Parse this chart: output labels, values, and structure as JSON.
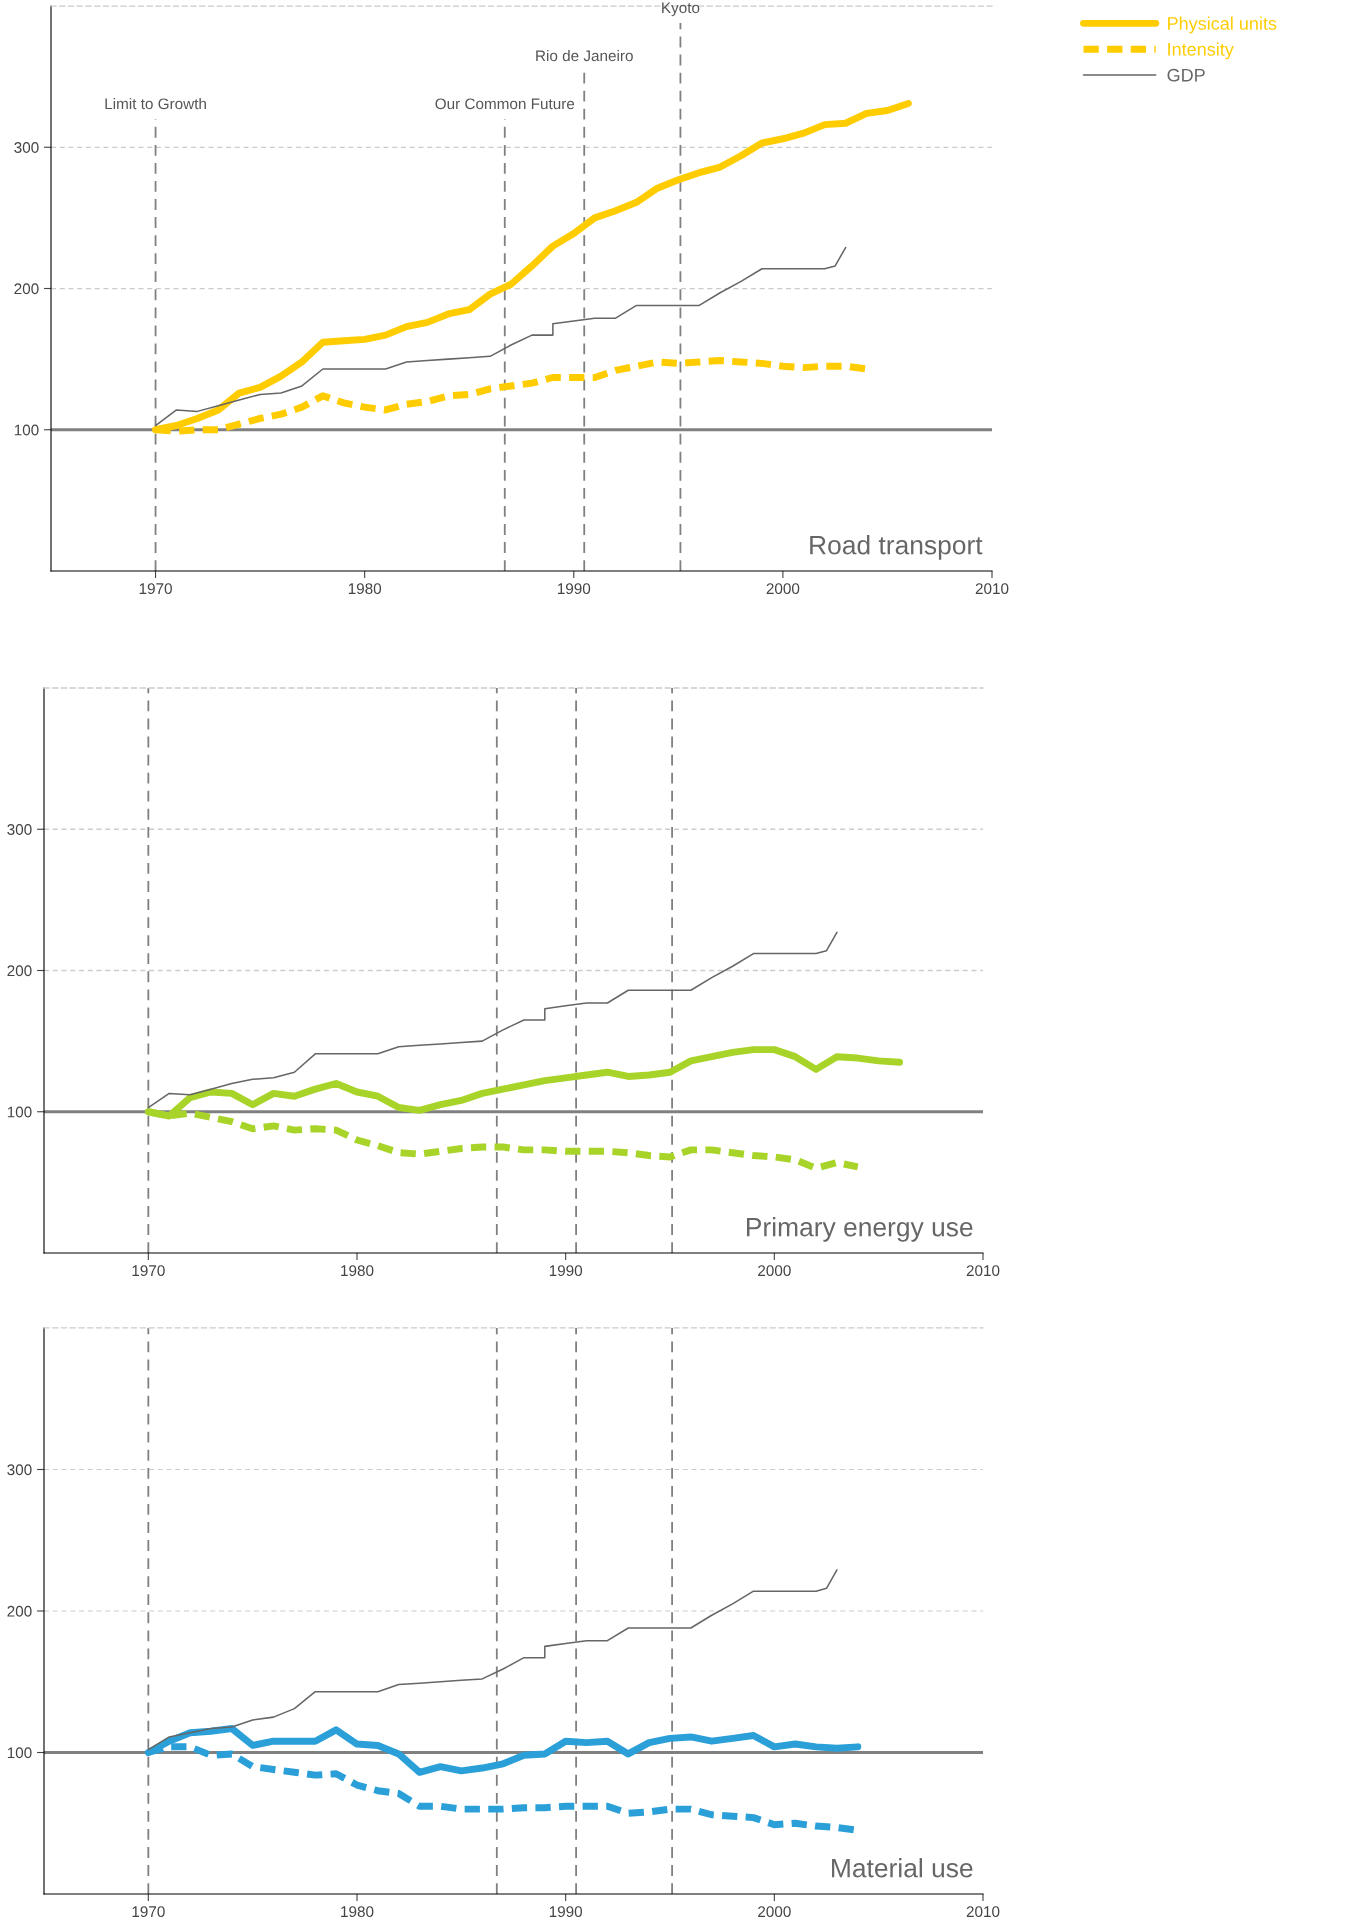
{
  "chart_data": [
    {
      "type": "line",
      "title": "Road transport",
      "xlim": [
        1965,
        2010
      ],
      "xticks": [
        1970,
        1980,
        1990,
        2000,
        2010
      ],
      "ylim": [
        0,
        400
      ],
      "yticks": [
        100,
        200,
        300
      ],
      "grid": "y",
      "legend": "top right",
      "ref_lines": [
        {
          "axis": "y",
          "value": 100,
          "color": "#808080",
          "line_style": "solid"
        },
        {
          "axis": "x",
          "value": 1970,
          "label": "Limit to Growth",
          "color": "#808080",
          "line_style": "dashed"
        },
        {
          "axis": "x",
          "value": 1986.7,
          "label": "Our Common Future",
          "color": "#808080",
          "line_style": "dashed"
        },
        {
          "axis": "x",
          "value": 1990.5,
          "label": "Rio de Janeiro",
          "color": "#808080",
          "line_style": "dashed"
        },
        {
          "axis": "x",
          "value": 1995.1,
          "label": "Kyoto",
          "color": "#808080",
          "line_style": "dashed"
        }
      ],
      "series": [
        {
          "name": "Physical units",
          "color": "#ffcc00",
          "line_style": "solid",
          "x": [
            1970,
            1971,
            1972,
            1973,
            1974,
            1975,
            1976,
            1977,
            1978,
            1979,
            1980,
            1981,
            1982,
            1983,
            1984,
            1985,
            1986,
            1987,
            1988,
            1989,
            1990,
            1991,
            1992,
            1993,
            1994,
            1995,
            1996,
            1997,
            1998,
            1999,
            2000,
            2001,
            2002,
            2003,
            2004,
            2005,
            2006
          ],
          "values": [
            100,
            103,
            108,
            114,
            126,
            130,
            138,
            148,
            162,
            163,
            164,
            167,
            173,
            176,
            182,
            185,
            196,
            203,
            216,
            230,
            239,
            250,
            255,
            261,
            271,
            277,
            282,
            286,
            294,
            303,
            306,
            310,
            316,
            317,
            324,
            326,
            331
          ]
        },
        {
          "name": "Intensity",
          "color": "#ffcc00",
          "line_style": "dashed",
          "x": [
            1970,
            1971,
            1972,
            1973,
            1974,
            1975,
            1976,
            1977,
            1978,
            1979,
            1980,
            1981,
            1982,
            1983,
            1984,
            1985,
            1986,
            1987,
            1988,
            1989,
            1990,
            1991,
            1992,
            1993,
            1994,
            1995,
            1996,
            1997,
            1998,
            1999,
            2000,
            2001,
            2002,
            2003,
            2004
          ],
          "values": [
            100,
            99,
            100,
            100,
            104,
            108,
            111,
            116,
            124,
            119,
            116,
            114,
            118,
            120,
            124,
            125,
            129,
            131,
            133,
            137,
            137,
            137,
            142,
            145,
            148,
            147,
            148,
            149,
            148,
            147,
            145,
            144,
            145,
            145,
            143
          ]
        },
        {
          "name": "GDP",
          "color": "#666666",
          "line_style": "solid",
          "x": [
            1970,
            1971,
            1972,
            1973,
            1974,
            1975,
            1976,
            1977,
            1978,
            1979,
            1980,
            1981,
            1982,
            1983,
            1984,
            1985,
            1986,
            1987,
            1988,
            1989,
            1989,
            1990,
            1991,
            1992,
            1993,
            1994,
            1995,
            1996,
            1997,
            1998,
            1999,
            2000,
            2001,
            2002,
            2002.5,
            2003
          ],
          "values": [
            103,
            114,
            113,
            117,
            121,
            125,
            126,
            131,
            143,
            143,
            143,
            143,
            148,
            149,
            150,
            151,
            152,
            160,
            167,
            167,
            175,
            177,
            179,
            179,
            188,
            188,
            188,
            188,
            197,
            205,
            214,
            214,
            214,
            214,
            216,
            229
          ]
        }
      ]
    },
    {
      "type": "line",
      "title": "Primary energy use",
      "xlim": [
        1965,
        2010
      ],
      "xticks": [
        1970,
        1980,
        1990,
        2000,
        2010
      ],
      "ylim": [
        0,
        400
      ],
      "yticks": [
        100,
        200,
        300
      ],
      "grid": "y",
      "ref_lines": [
        {
          "axis": "y",
          "value": 100,
          "color": "#808080",
          "line_style": "solid"
        },
        {
          "axis": "x",
          "value": 1970,
          "color": "#808080",
          "line_style": "dashed"
        },
        {
          "axis": "x",
          "value": 1986.7,
          "color": "#808080",
          "line_style": "dashed"
        },
        {
          "axis": "x",
          "value": 1990.5,
          "color": "#808080",
          "line_style": "dashed"
        },
        {
          "axis": "x",
          "value": 1995.1,
          "color": "#808080",
          "line_style": "dashed"
        }
      ],
      "series": [
        {
          "color": "#a8d42a",
          "line_style": "solid",
          "x": [
            1970,
            1971,
            1972,
            1973,
            1974,
            1975,
            1976,
            1977,
            1978,
            1979,
            1980,
            1981,
            1982,
            1983,
            1984,
            1985,
            1986,
            1987,
            1988,
            1989,
            1990,
            1991,
            1992,
            1993,
            1994,
            1995,
            1996,
            1997,
            1998,
            1999,
            2000,
            2001,
            2002,
            2003,
            2004,
            2005,
            2006
          ],
          "values": [
            100,
            97,
            110,
            114,
            113,
            105,
            113,
            111,
            116,
            120,
            114,
            111,
            103,
            101,
            105,
            108,
            113,
            116,
            119,
            122,
            124,
            126,
            128,
            125,
            126,
            128,
            136,
            139,
            142,
            144,
            144,
            139,
            130,
            139,
            138,
            136,
            135
          ]
        },
        {
          "color": "#a8d42a",
          "line_style": "dashed",
          "x": [
            1970,
            1971,
            1972,
            1973,
            1974,
            1975,
            1976,
            1977,
            1978,
            1979,
            1980,
            1981,
            1982,
            1983,
            1984,
            1985,
            1986,
            1987,
            1988,
            1989,
            1990,
            1991,
            1992,
            1993,
            1994,
            1995,
            1996,
            1997,
            1998,
            1999,
            2000,
            2001,
            2002,
            2003,
            2004
          ],
          "values": [
            100,
            97,
            99,
            96,
            93,
            88,
            90,
            87,
            88,
            87,
            80,
            76,
            71,
            70,
            72,
            74,
            75,
            75,
            73,
            73,
            72,
            72,
            72,
            71,
            69,
            68,
            73,
            73,
            71,
            69,
            68,
            66,
            60,
            64,
            61
          ]
        },
        {
          "color": "#666666",
          "line_style": "solid",
          "x": [
            1970,
            1971,
            1972,
            1973,
            1974,
            1975,
            1976,
            1977,
            1978,
            1979,
            1980,
            1981,
            1982,
            1983,
            1984,
            1985,
            1986,
            1987,
            1988,
            1989,
            1989,
            1990,
            1991,
            1992,
            1993,
            1994,
            1995,
            1996,
            1997,
            1998,
            1999,
            2000,
            2001,
            2002,
            2002.5,
            2003
          ],
          "values": [
            103,
            113,
            112,
            116,
            120,
            123,
            124,
            128,
            141,
            141,
            141,
            141,
            146,
            147,
            148,
            149,
            150,
            158,
            165,
            165,
            173,
            175,
            177,
            177,
            186,
            186,
            186,
            186,
            195,
            203,
            212,
            212,
            212,
            212,
            214,
            227
          ]
        }
      ]
    },
    {
      "type": "line",
      "title": "Material use",
      "xlim": [
        1965,
        2010
      ],
      "xticks": [
        1970,
        1980,
        1990,
        2000,
        2010
      ],
      "ylim": [
        0,
        400
      ],
      "yticks": [
        100,
        200,
        300
      ],
      "grid": "y",
      "ref_lines": [
        {
          "axis": "y",
          "value": 100,
          "color": "#808080",
          "line_style": "solid"
        },
        {
          "axis": "x",
          "value": 1970,
          "color": "#808080",
          "line_style": "dashed"
        },
        {
          "axis": "x",
          "value": 1986.7,
          "color": "#808080",
          "line_style": "dashed"
        },
        {
          "axis": "x",
          "value": 1990.5,
          "color": "#808080",
          "line_style": "dashed"
        },
        {
          "axis": "x",
          "value": 1995.1,
          "color": "#808080",
          "line_style": "dashed"
        }
      ],
      "series": [
        {
          "color": "#2a9fd8",
          "line_style": "solid",
          "x": [
            1970,
            1971,
            1972,
            1973,
            1974,
            1975,
            1976,
            1977,
            1978,
            1979,
            1980,
            1981,
            1982,
            1983,
            1984,
            1985,
            1986,
            1987,
            1988,
            1989,
            1990,
            1991,
            1992,
            1993,
            1994,
            1995,
            1996,
            1997,
            1998,
            1999,
            2000,
            2001,
            2002,
            2003,
            2004
          ],
          "values": [
            100,
            108,
            114,
            115,
            117,
            105,
            108,
            108,
            108,
            116,
            106,
            105,
            99,
            86,
            90,
            87,
            89,
            92,
            98,
            99,
            108,
            107,
            108,
            99,
            107,
            110,
            111,
            108,
            110,
            112,
            104,
            106,
            104,
            103,
            104
          ]
        },
        {
          "color": "#2a9fd8",
          "line_style": "dashed",
          "x": [
            1970,
            1971,
            1972,
            1973,
            1974,
            1975,
            1976,
            1977,
            1978,
            1979,
            1980,
            1981,
            1982,
            1983,
            1984,
            1985,
            1986,
            1987,
            1988,
            1989,
            1990,
            1991,
            1992,
            1993,
            1994,
            1995,
            1996,
            1997,
            1998,
            1999,
            2000,
            2001,
            2002,
            2003,
            2004
          ],
          "values": [
            100,
            104,
            104,
            98,
            99,
            90,
            88,
            86,
            84,
            85,
            77,
            73,
            71,
            62,
            62,
            60,
            60,
            60,
            61,
            61,
            62,
            62,
            62,
            57,
            58,
            60,
            60,
            56,
            55,
            54,
            49,
            50,
            48,
            47,
            45
          ]
        },
        {
          "color": "#666666",
          "line_style": "solid",
          "x": [
            1970,
            1971,
            1972,
            1973,
            1974,
            1975,
            1976,
            1977,
            1978,
            1979,
            1980,
            1981,
            1982,
            1983,
            1984,
            1985,
            1986,
            1987,
            1988,
            1989,
            1989,
            1990,
            1991,
            1992,
            1993,
            1994,
            1995,
            1996,
            1997,
            1998,
            1999,
            2000,
            2001,
            2002,
            2002.5,
            2003
          ],
          "values": [
            102,
            111,
            114,
            117,
            118,
            123,
            125,
            131,
            143,
            143,
            143,
            143,
            148,
            149,
            150,
            151,
            152,
            159,
            167,
            167,
            175,
            177,
            179,
            179,
            188,
            188,
            188,
            188,
            197,
            205,
            214,
            214,
            214,
            214,
            216,
            229
          ]
        }
      ]
    }
  ]
}
